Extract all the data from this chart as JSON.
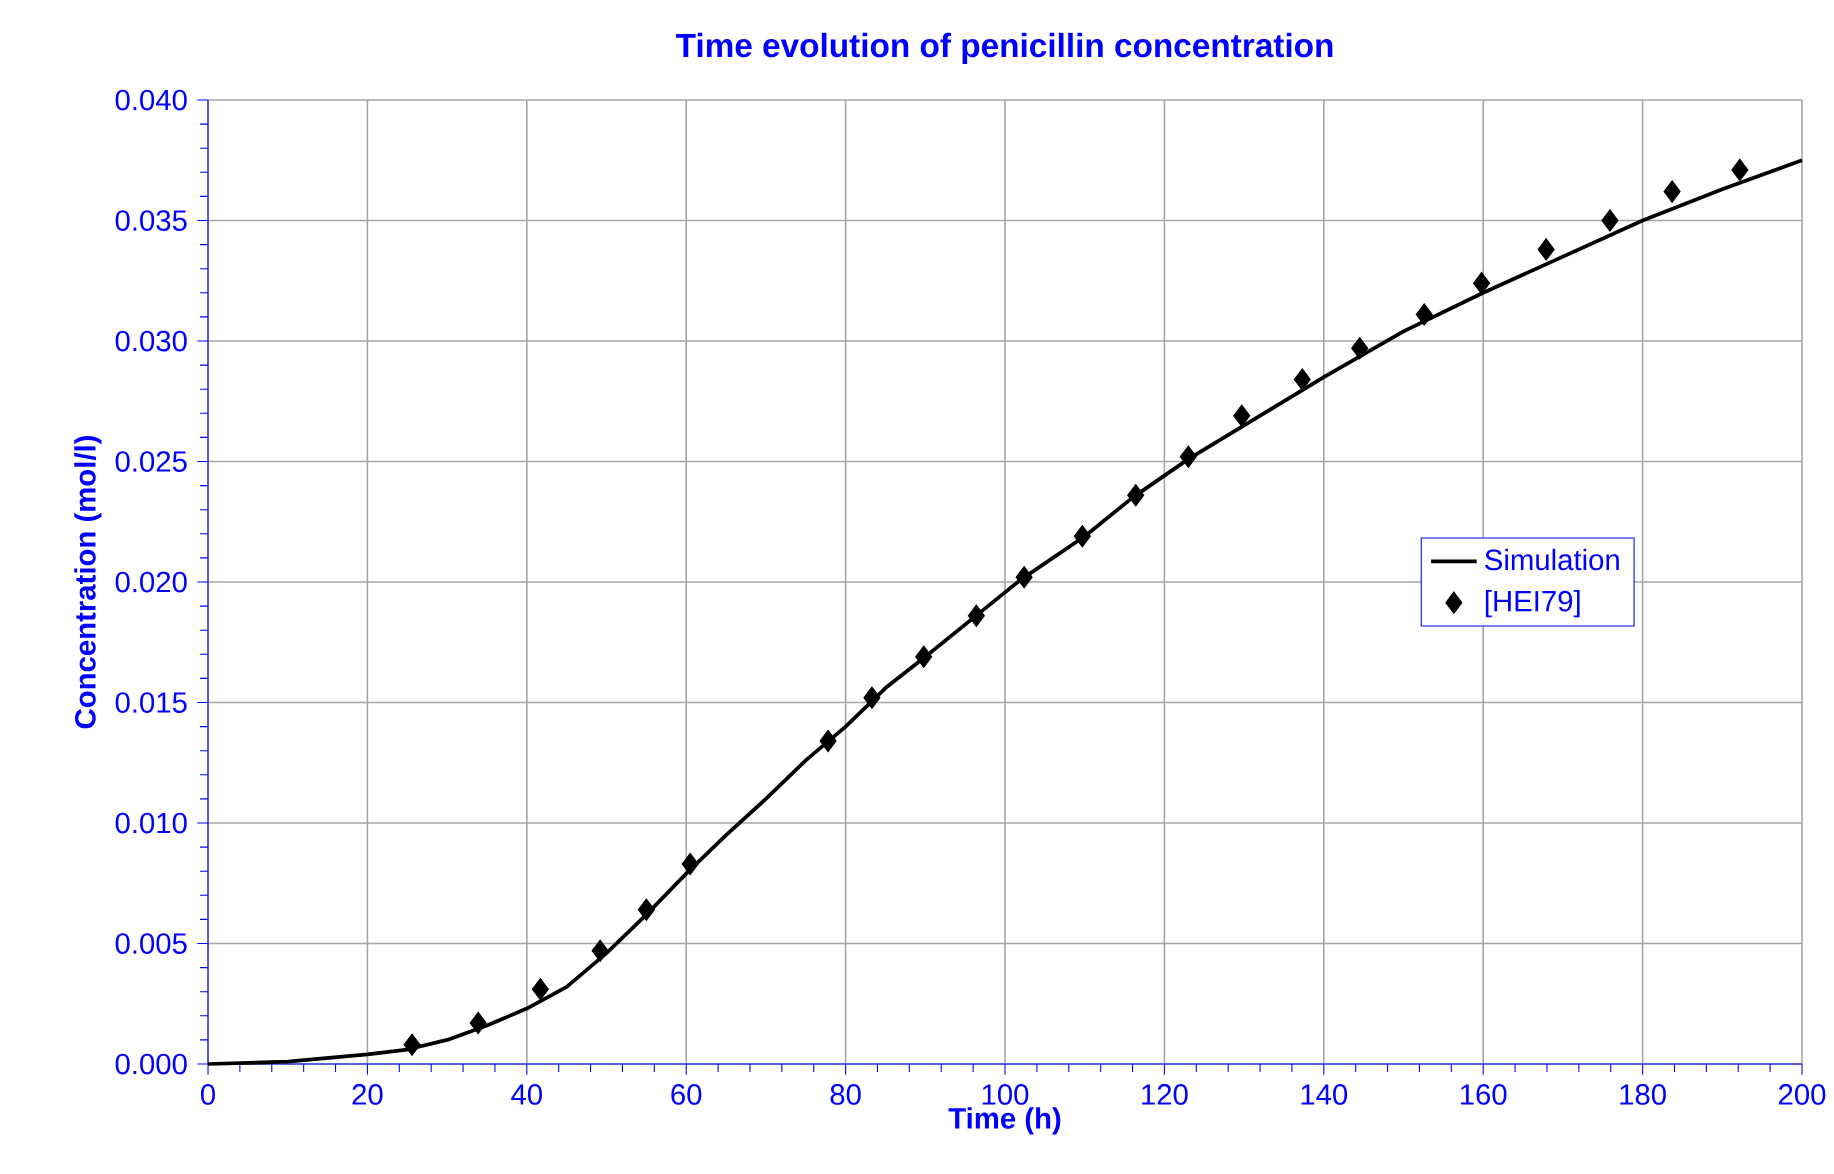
{
  "chart_data": {
    "type": "line",
    "title": "Time evolution of penicillin concentration",
    "xlabel": "Time (h)",
    "ylabel": "Concentration (mol/l)",
    "series": [
      {
        "name": "Simulation",
        "color": "#000000",
        "marker": "none",
        "line_style": "solid",
        "x": [
          0,
          10,
          20,
          25,
          30,
          35,
          40,
          45,
          50,
          55,
          60,
          65,
          70,
          75,
          80,
          85,
          90,
          96,
          102,
          110,
          116,
          123,
          130,
          140,
          150,
          160,
          170,
          180,
          190,
          200
        ],
        "values": [
          0.0,
          0.0001,
          0.0004,
          0.0006,
          0.001,
          0.0016,
          0.0023,
          0.0032,
          0.0046,
          0.0062,
          0.0079,
          0.0095,
          0.011,
          0.0126,
          0.014,
          0.0156,
          0.0169,
          0.0185,
          0.0201,
          0.0219,
          0.0235,
          0.0251,
          0.0265,
          0.0285,
          0.0304,
          0.032,
          0.0335,
          0.035,
          0.0363,
          0.0375
        ]
      },
      {
        "name": "[HEI79]",
        "type": "scatter",
        "color": "#000000",
        "marker": "diamond",
        "x": [
          25.6,
          33.9,
          41.7,
          49.2,
          55.0,
          60.5,
          77.8,
          83.3,
          89.8,
          96.4,
          102.4,
          109.7,
          116.4,
          123.0,
          129.7,
          137.3,
          144.5,
          152.6,
          159.8,
          167.9,
          175.9,
          183.7,
          192.2
        ],
        "values": [
          0.0008,
          0.0017,
          0.0031,
          0.0047,
          0.0064,
          0.0083,
          0.0134,
          0.0152,
          0.0169,
          0.0186,
          0.0202,
          0.0219,
          0.0236,
          0.0252,
          0.0269,
          0.0284,
          0.0297,
          0.0311,
          0.0324,
          0.0338,
          0.035,
          0.0362,
          0.0371
        ]
      }
    ],
    "xlim": [
      0,
      200
    ],
    "xticks": [
      0,
      20,
      40,
      60,
      80,
      100,
      120,
      140,
      160,
      180,
      200
    ],
    "ylim": [
      0,
      0.04
    ],
    "yticks": [
      {
        "value": 0,
        "label": "0.000"
      },
      {
        "value": 0.005,
        "label": "0.005"
      },
      {
        "value": 0.01,
        "label": "0.010"
      },
      {
        "value": 0.015,
        "label": "0.015"
      },
      {
        "value": 0.02,
        "label": "0.020"
      },
      {
        "value": 0.025,
        "label": "0.025"
      },
      {
        "value": 0.03,
        "label": "0.030"
      },
      {
        "value": 0.035,
        "label": "0.035"
      },
      {
        "value": 0.04,
        "label": "0.040"
      }
    ],
    "grid": true,
    "legend": "right"
  }
}
